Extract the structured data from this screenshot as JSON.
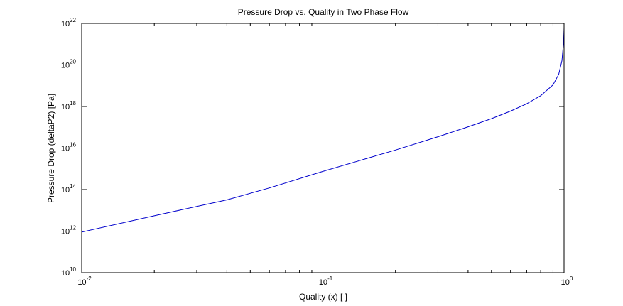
{
  "chart_data": {
    "type": "line",
    "title": "Pressure Drop vs. Quality in Two Phase Flow",
    "xlabel": "Quality (x) [ ]",
    "ylabel": "Pressure Drop (deltaP2) [Pa]",
    "xscale": "log",
    "yscale": "log",
    "xlim": [
      0.01,
      1
    ],
    "ylim": [
      10000000000.0,
      1e+22
    ],
    "grid": false,
    "line_color": "#0000cc",
    "x_ticks": [
      {
        "value": 0.01,
        "base": "10",
        "exp": "-2"
      },
      {
        "value": 0.1,
        "base": "10",
        "exp": "-1"
      },
      {
        "value": 1,
        "base": "10",
        "exp": "0"
      }
    ],
    "y_ticks": [
      {
        "value": 10000000000.0,
        "base": "10",
        "exp": "10"
      },
      {
        "value": 1000000000000.0,
        "base": "10",
        "exp": "12"
      },
      {
        "value": 100000000000000.0,
        "base": "10",
        "exp": "14"
      },
      {
        "value": 1e+16,
        "base": "10",
        "exp": "16"
      },
      {
        "value": 1e+18,
        "base": "10",
        "exp": "18"
      },
      {
        "value": 1e+20,
        "base": "10",
        "exp": "20"
      },
      {
        "value": 1e+22,
        "base": "10",
        "exp": "22"
      }
    ],
    "series": [
      {
        "x": [
          0.01,
          0.02,
          0.04,
          0.06,
          0.1,
          0.15,
          0.2,
          0.3,
          0.4,
          0.5,
          0.6,
          0.7,
          0.8,
          0.9,
          0.95,
          0.98,
          0.995,
          1.0
        ],
        "y": [
          900000000000.0,
          5500000000000.0,
          32000000000000.0,
          120000000000000.0,
          750000000000000.0,
          3000000000000000.0,
          8000000000000000.0,
          3.5e+16,
          1.05e+17,
          2.6e+17,
          6e+17,
          1.35e+18,
          3.3e+18,
          1.1e+19,
          3.5e+19,
          1.6e+20,
          1.2e+21,
          6e+21
        ]
      }
    ]
  }
}
